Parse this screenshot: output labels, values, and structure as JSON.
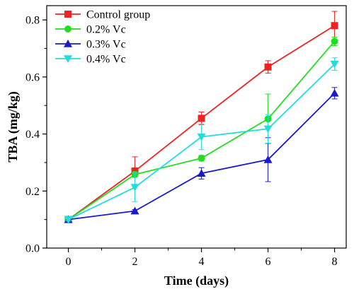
{
  "chart_data": {
    "type": "line",
    "title": "",
    "xlabel": "Time (days)",
    "ylabel": "TBA (mg/kg)",
    "x": [
      0,
      2,
      4,
      6,
      8
    ],
    "xlim": [
      -0.65,
      8.35
    ],
    "ylim": [
      0.0,
      0.85
    ],
    "x_ticks": [
      0,
      2,
      4,
      6,
      8
    ],
    "y_ticks": [
      0.0,
      0.2,
      0.4,
      0.6,
      0.8
    ],
    "x_tick_labels": [
      "0",
      "2",
      "4",
      "6",
      "8"
    ],
    "y_tick_labels": [
      "0.0",
      "0.2",
      "0.4",
      "0.6",
      "0.8"
    ],
    "grid": false,
    "legend_position": "top-left",
    "series": [
      {
        "name": "Control group",
        "color": "#ee2222",
        "marker": "square",
        "values": [
          0.1,
          0.27,
          0.455,
          0.635,
          0.78
        ],
        "errors": [
          0.005,
          0.05,
          0.022,
          0.022,
          0.05
        ]
      },
      {
        "name": "0.2% Vc",
        "color": "#22dd22",
        "marker": "circle",
        "values": [
          0.1,
          0.258,
          0.315,
          0.453,
          0.725
        ],
        "errors": [
          0.005,
          0.01,
          0.01,
          0.087,
          0.015
        ]
      },
      {
        "name": "0.3% Vc",
        "color": "#1a1acc",
        "marker": "triangle-up",
        "values": [
          0.1,
          0.13,
          0.262,
          0.31,
          0.543
        ],
        "errors": [
          0.005,
          0.005,
          0.02,
          0.077,
          0.02
        ]
      },
      {
        "name": "0.4% Vc",
        "color": "#22dddd",
        "marker": "triangle-down",
        "values": [
          0.1,
          0.213,
          0.39,
          0.418,
          0.645
        ],
        "errors": [
          0.005,
          0.05,
          0.045,
          0.05,
          0.022
        ]
      }
    ]
  }
}
